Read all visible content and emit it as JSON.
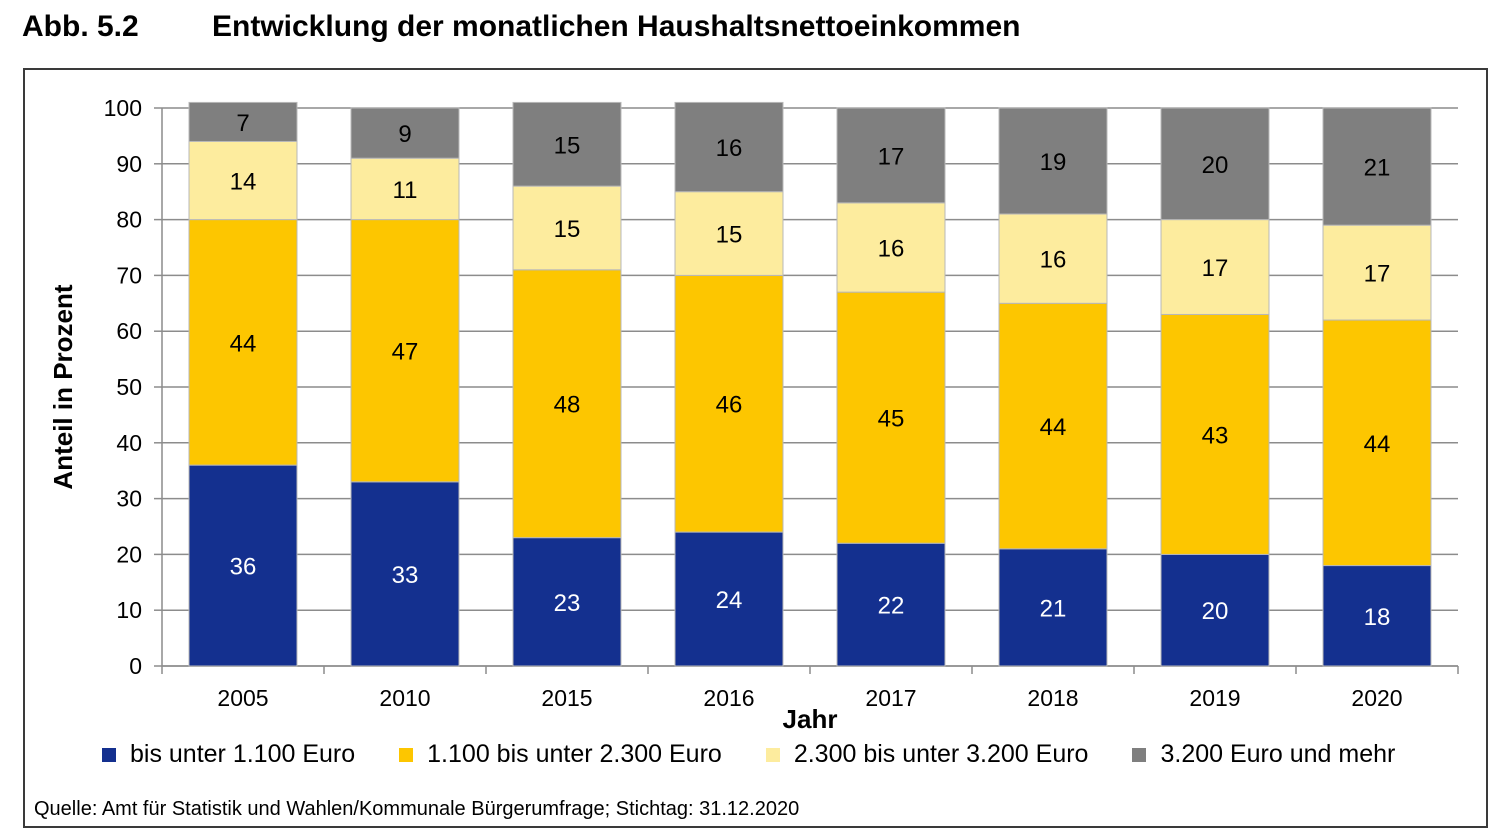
{
  "header": {
    "figure_label": "Abb. 5.2",
    "title": "Entwicklung der monatlichen Haushaltsnettoeinkommen"
  },
  "source": "Quelle: Amt für Statistik und Wahlen/Kommunale Bürgerumfrage; Stichtag: 31.12.2020",
  "chart_data": {
    "type": "bar",
    "stacked": true,
    "title": "Entwicklung der monatlichen Haushaltsnettoeinkommen",
    "xlabel": "Jahr",
    "ylabel": "Anteil in Prozent",
    "ylim": [
      0,
      100
    ],
    "yticks": [
      0,
      10,
      20,
      30,
      40,
      50,
      60,
      70,
      80,
      90,
      100
    ],
    "grid": true,
    "legend_position": "bottom",
    "categories": [
      "2005",
      "2010",
      "2015",
      "2016",
      "2017",
      "2018",
      "2019",
      "2020"
    ],
    "series": [
      {
        "name": "bis unter 1.100 Euro",
        "color": "#14308f",
        "label_color": "#ffffff",
        "values": [
          36,
          33,
          23,
          24,
          22,
          21,
          20,
          18
        ]
      },
      {
        "name": "1.100 bis unter 2.300 Euro",
        "color": "#fdc600",
        "label_color": "#000000",
        "values": [
          44,
          47,
          48,
          46,
          45,
          44,
          43,
          44
        ]
      },
      {
        "name": "2.300 bis unter 3.200 Euro",
        "color": "#fdec9e",
        "label_color": "#000000",
        "values": [
          14,
          11,
          15,
          15,
          16,
          16,
          17,
          17
        ]
      },
      {
        "name": "3.200 Euro und mehr",
        "color": "#7f7f7f",
        "label_color": "#000000",
        "values": [
          7,
          9,
          15,
          16,
          17,
          19,
          20,
          21
        ]
      }
    ]
  }
}
